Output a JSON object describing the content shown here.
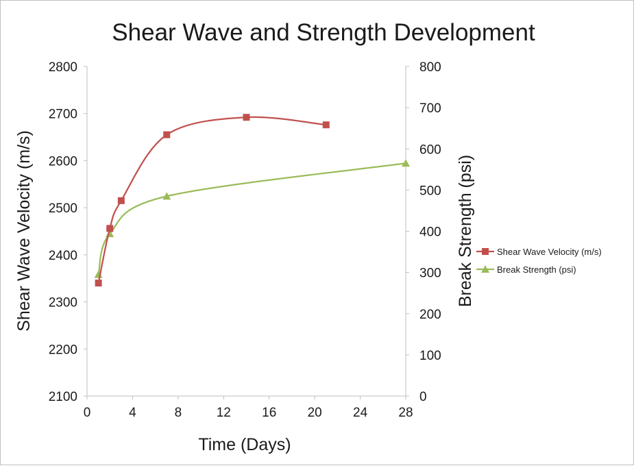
{
  "chart_data": {
    "type": "line",
    "title": "Shear Wave and Strength Development",
    "xlabel": "Time (Days)",
    "ylabel": "Shear Wave Velocity (m/s)",
    "y2label": "Break Strength (psi)",
    "xlim": [
      0,
      28
    ],
    "ylim": [
      2100,
      2800
    ],
    "y2lim": [
      0,
      800
    ],
    "xticks": [
      0,
      4,
      8,
      12,
      16,
      20,
      24,
      28
    ],
    "yticks": [
      2100,
      2200,
      2300,
      2400,
      2500,
      2600,
      2700,
      2800
    ],
    "y2ticks": [
      0,
      100,
      200,
      300,
      400,
      500,
      600,
      700,
      800
    ],
    "grid": false,
    "smooth": true,
    "legend_position": "right",
    "series": [
      {
        "name": "Shear Wave Velocity (m/s)",
        "axis": "left",
        "marker": "square",
        "color": "#C0504D",
        "x": [
          1,
          2,
          3,
          7,
          14,
          21
        ],
        "y": [
          2340,
          2456,
          2515,
          2655,
          2692,
          2676
        ]
      },
      {
        "name": "Break Strength (psi)",
        "axis": "right",
        "marker": "triangle",
        "color": "#9BBB59",
        "x": [
          1,
          2,
          7,
          28
        ],
        "y": [
          295,
          394,
          485,
          565
        ]
      }
    ]
  }
}
